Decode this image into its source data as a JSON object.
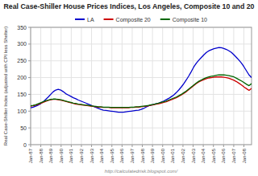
{
  "chart_data": {
    "type": "line",
    "title": "Real Case-Shiller House Prices Indices, Los Angeles, Composite 10 and 20",
    "ylabel": "Real Case-Shiller Index (adjusted with CPI less Shelter)",
    "annotations": [
      {
        "text": "http://calculatedrisk.blogspot.com/"
      }
    ],
    "x": [
      0,
      1,
      2,
      3,
      4,
      5,
      6,
      7,
      8,
      9,
      10,
      11,
      12,
      13,
      14,
      15,
      16,
      17,
      18,
      19,
      20,
      21,
      22,
      23,
      24,
      25,
      26,
      27,
      28,
      29,
      30,
      31,
      32,
      33,
      34,
      35,
      36,
      37,
      38,
      39,
      40,
      41,
      42,
      43,
      44,
      45,
      46,
      47,
      48,
      49,
      50,
      51,
      52,
      53,
      54,
      55,
      56,
      57,
      58,
      59,
      60,
      61,
      62,
      63,
      64,
      65,
      66,
      67,
      68,
      69,
      70,
      71,
      72,
      73,
      74,
      75,
      76,
      77,
      78,
      79,
      80,
      81,
      82,
      83,
      84,
      85,
      86,
      87,
      88
    ],
    "xlim": [
      0,
      88
    ],
    "xticks": [
      {
        "value": 0,
        "label": "Jan-87"
      },
      {
        "value": 4.045454545454546,
        "label": "Jan-88"
      },
      {
        "value": 8.090909090909092,
        "label": "Jan-89"
      },
      {
        "value": 12.136363636363637,
        "label": "Jan-90"
      },
      {
        "value": 16.181818181818183,
        "label": "Jan-91"
      },
      {
        "value": 20.227272727272727,
        "label": "Jan-92"
      },
      {
        "value": 24.272727272727273,
        "label": "Jan-93"
      },
      {
        "value": 28.318181818181817,
        "label": "Jan-94"
      },
      {
        "value": 32.36363636363637,
        "label": "Jan-95"
      },
      {
        "value": 36.40909090909091,
        "label": "Jan-96"
      },
      {
        "value": 40.45454545454545,
        "label": "Jan-97"
      },
      {
        "value": 44.5,
        "label": "Jan-98"
      },
      {
        "value": 48.54545454545455,
        "label": "Jan-99"
      },
      {
        "value": 52.59090909090909,
        "label": "Jan-00"
      },
      {
        "value": 56.63636363636363,
        "label": "Jan-01"
      },
      {
        "value": 60.68181818181818,
        "label": "Jan-02"
      },
      {
        "value": 64.72727272727273,
        "label": "Jan-03"
      },
      {
        "value": 68.77272727272727,
        "label": "Jan-04"
      },
      {
        "value": 72.81818181818181,
        "label": "Jan-05"
      },
      {
        "value": 76.86363636363636,
        "label": "Jan-06"
      },
      {
        "value": 80.9090909090909,
        "label": "Jan-07"
      },
      {
        "value": 84.95454545454545,
        "label": "Jan-08"
      }
    ],
    "ylim": [
      0,
      350
    ],
    "yticks": [
      0,
      50,
      100,
      150,
      200,
      250,
      300,
      350
    ],
    "grid": true,
    "legend": "top",
    "series": [
      {
        "name": "LA",
        "color": "#0000cc",
        "values": [
          110,
          112,
          115,
          118,
          122,
          128,
          135,
          142,
          150,
          158,
          163,
          165,
          163,
          158,
          152,
          148,
          144,
          140,
          137,
          133,
          130,
          127,
          124,
          121,
          118,
          114,
          111,
          108,
          105,
          103,
          102,
          101,
          100,
          99,
          98,
          97,
          97,
          97,
          98,
          99,
          100,
          101,
          102,
          103,
          105,
          108,
          112,
          116,
          118,
          120,
          122,
          124,
          127,
          130,
          134,
          138,
          143,
          148,
          155,
          163,
          172,
          182,
          193,
          205,
          218,
          232,
          243,
          252,
          260,
          268,
          275,
          280,
          283,
          286,
          288,
          290,
          289,
          287,
          284,
          280,
          275,
          268,
          260,
          252,
          243,
          232,
          220,
          208,
          200
        ]
      },
      {
        "name": "Composite 20",
        "color": "#cc0000",
        "values": [
          115,
          116,
          118,
          120,
          123,
          126,
          129,
          132,
          134,
          135,
          135,
          134,
          133,
          131,
          129,
          127,
          125,
          123,
          121,
          120,
          119,
          118,
          117,
          116,
          115,
          114,
          113,
          112,
          112,
          111,
          111,
          111,
          110,
          110,
          110,
          110,
          110,
          110,
          110,
          110,
          111,
          111,
          112,
          112,
          113,
          114,
          115,
          116,
          118,
          119,
          121,
          122,
          124,
          126,
          128,
          131,
          134,
          137,
          140,
          144,
          148,
          153,
          158,
          164,
          170,
          176,
          182,
          187,
          191,
          194,
          197,
          199,
          200,
          201,
          202,
          202,
          202,
          201,
          200,
          198,
          195,
          192,
          188,
          183,
          178,
          172,
          167,
          162,
          168
        ]
      },
      {
        "name": "Composite 10",
        "color": "#006600",
        "values": [
          116,
          117,
          119,
          122,
          125,
          128,
          131,
          133,
          135,
          136,
          136,
          135,
          134,
          132,
          130,
          128,
          126,
          124,
          123,
          121,
          120,
          119,
          118,
          117,
          116,
          115,
          114,
          113,
          113,
          112,
          112,
          112,
          111,
          111,
          111,
          111,
          111,
          111,
          111,
          111,
          112,
          112,
          113,
          113,
          114,
          115,
          116,
          117,
          119,
          120,
          122,
          124,
          126,
          128,
          130,
          133,
          136,
          139,
          142,
          146,
          150,
          155,
          160,
          166,
          172,
          178,
          184,
          189,
          193,
          197,
          200,
          202,
          204,
          205,
          207,
          208,
          208,
          208,
          207,
          206,
          204,
          202,
          198,
          194,
          190,
          185,
          180,
          176,
          182
        ]
      }
    ]
  }
}
